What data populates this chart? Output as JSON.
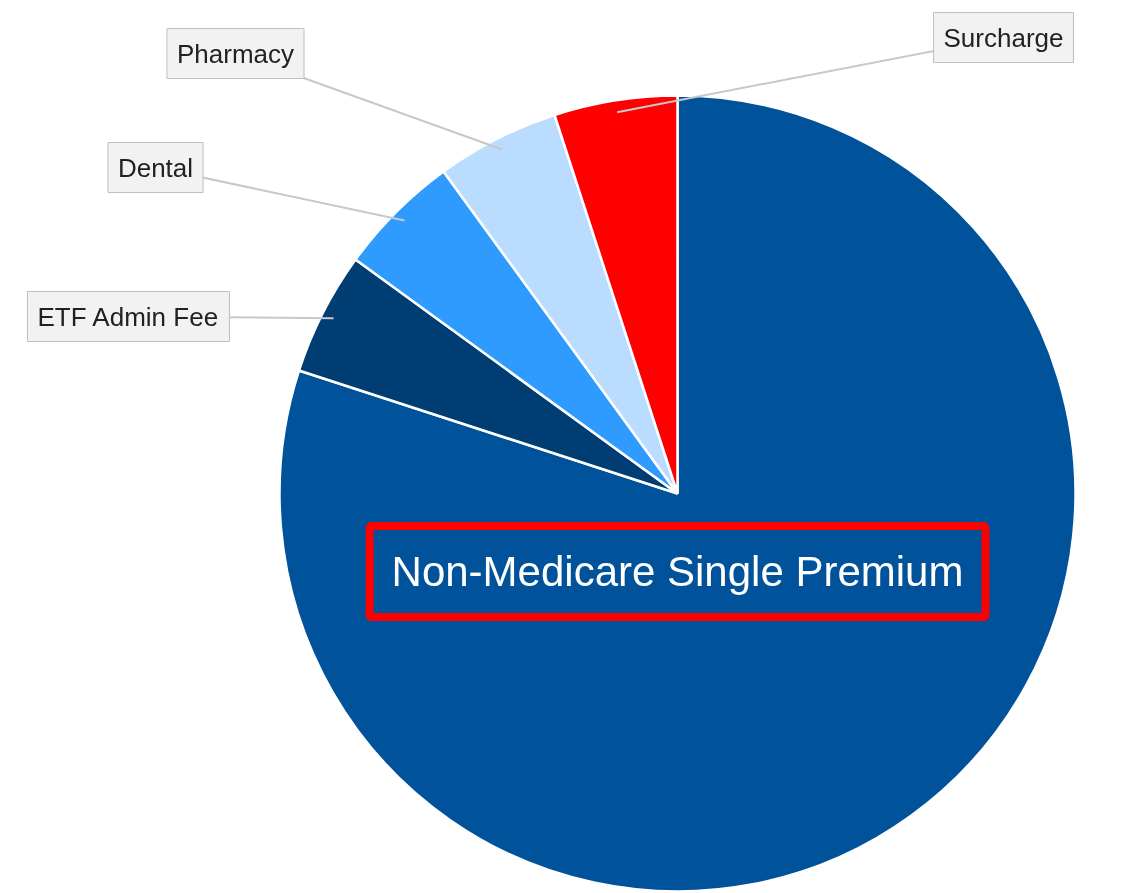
{
  "chart_data": {
    "type": "pie",
    "categories": [
      "Non-Medicare Single Premium",
      "ETF Admin Fee",
      "Dental",
      "Pharmacy",
      "Surcharge"
    ],
    "values": [
      80,
      5,
      5,
      5,
      5
    ],
    "colors": [
      "#00529b",
      "#003d73",
      "#2f9bff",
      "#b9dcff",
      "#ff0000"
    ]
  }
}
